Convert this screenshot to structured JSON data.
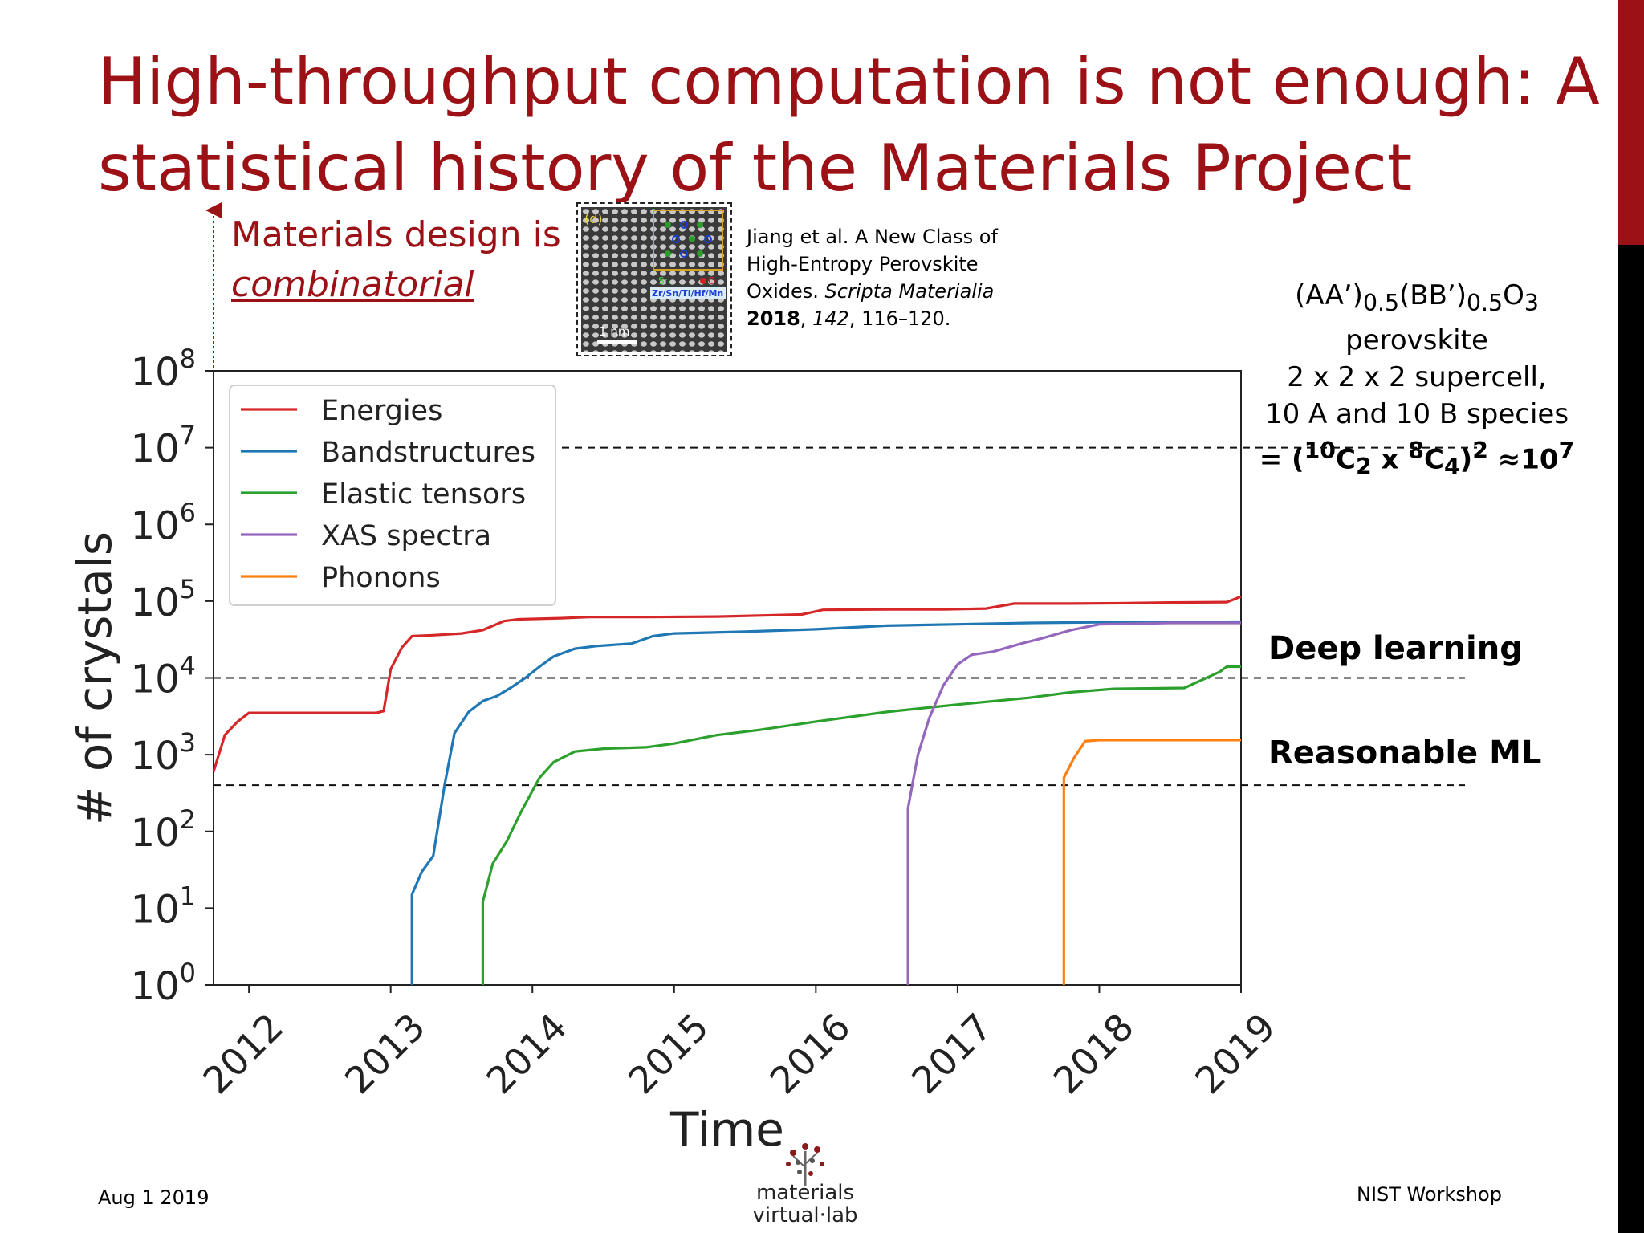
{
  "slide": {
    "title_lines": [
      "High-throughput computation is not enough: A",
      "statistical history of the Materials Project"
    ],
    "design_note": {
      "line1": "Materials design is",
      "line2": "combinatorial"
    },
    "citation": {
      "line1": "Jiang et al. A New Class of",
      "line2": "High-Entropy Perovskite",
      "line3_pre": "Oxides. ",
      "line3_journal": "Scripta Materialia",
      "line4_year": "2018",
      "line4_sep": ", ",
      "line4_volume": "142",
      "line4_pages": ", 116–120."
    },
    "micrograph": {
      "panel_label": "(d)",
      "elements_label": "Zr/Sn/Ti/Hf/Mn",
      "sr_label": "Sr",
      "o_label": "O",
      "scale_label": "1 nm"
    },
    "formula": {
      "line1_a": "(AA’)",
      "line1_sub1": "0.5",
      "line1_b": "(BB’)",
      "line1_sub2": "0.5",
      "line1_c": "O",
      "line1_sub3": "3",
      "line1_d": " perovskite",
      "line2": "2 x 2 x 2 supercell,",
      "line3": "10 A and 10 B species",
      "line4_a": "= (",
      "line4_sup1": "10",
      "line4_b": "C",
      "line4_sub1": "2",
      "line4_c": " x ",
      "line4_sup2": "8",
      "line4_d": "C",
      "line4_sub2": "4",
      "line4_e": ")",
      "line4_sup3": "2",
      "line4_f": " ≈10",
      "line4_sup4": "7"
    },
    "annotations": {
      "deep_learning": "Deep learning",
      "reasonable_ml": "Reasonable ML"
    },
    "footer": {
      "date": "Aug 1 2019",
      "venue": "NIST Workshop"
    },
    "logo": {
      "line1": "materials",
      "line2": "virtual·lab"
    },
    "colors": {
      "title": "#9b1116",
      "accent": "#9b1116"
    }
  },
  "chart_data": {
    "type": "line",
    "title": "",
    "xlabel": "Time",
    "ylabel": "# of crystals",
    "yscale": "log",
    "ylim_exponents": [
      0,
      8
    ],
    "xlim": [
      2011.75,
      2019.0
    ],
    "x_ticks": [
      2012,
      2013,
      2014,
      2015,
      2016,
      2017,
      2018,
      2019
    ],
    "y_tick_exponents": [
      0,
      1,
      2,
      3,
      4,
      5,
      6,
      7,
      8
    ],
    "y_tick_base": "10",
    "legend_position": "top-left",
    "reference_lines": [
      {
        "value": 10000000,
        "label": "≈10⁷"
      },
      {
        "value": 10000,
        "label": "Deep learning"
      },
      {
        "value": 400,
        "label": "Reasonable ML"
      }
    ],
    "series": [
      {
        "name": "Energies",
        "color": "#d62728",
        "points": [
          [
            2011.75,
            600
          ],
          [
            2011.83,
            1800
          ],
          [
            2011.92,
            2700
          ],
          [
            2012.0,
            3500
          ],
          [
            2012.5,
            3500
          ],
          [
            2012.9,
            3500
          ],
          [
            2012.95,
            3700
          ],
          [
            2013.0,
            13000
          ],
          [
            2013.08,
            25000
          ],
          [
            2013.15,
            35000
          ],
          [
            2013.3,
            36000
          ],
          [
            2013.5,
            38000
          ],
          [
            2013.65,
            42000
          ],
          [
            2013.8,
            55000
          ],
          [
            2013.9,
            58000
          ],
          [
            2014.2,
            60000
          ],
          [
            2014.4,
            62000
          ],
          [
            2014.8,
            62000
          ],
          [
            2015.3,
            63000
          ],
          [
            2015.6,
            65000
          ],
          [
            2015.9,
            67000
          ],
          [
            2016.05,
            77000
          ],
          [
            2016.5,
            78000
          ],
          [
            2016.9,
            78000
          ],
          [
            2017.2,
            80000
          ],
          [
            2017.4,
            93000
          ],
          [
            2017.8,
            93000
          ],
          [
            2018.2,
            94000
          ],
          [
            2018.5,
            96000
          ],
          [
            2018.9,
            97000
          ],
          [
            2019.0,
            115000
          ]
        ]
      },
      {
        "name": "Bandstructures",
        "color": "#1f77b4",
        "points": [
          [
            2013.15,
            0.3
          ],
          [
            2013.15,
            15
          ],
          [
            2013.22,
            30
          ],
          [
            2013.3,
            48
          ],
          [
            2013.38,
            400
          ],
          [
            2013.45,
            1900
          ],
          [
            2013.55,
            3600
          ],
          [
            2013.65,
            5000
          ],
          [
            2013.75,
            5800
          ],
          [
            2013.85,
            7500
          ],
          [
            2013.95,
            10000
          ],
          [
            2014.05,
            14000
          ],
          [
            2014.15,
            19000
          ],
          [
            2014.3,
            24000
          ],
          [
            2014.45,
            26000
          ],
          [
            2014.7,
            28000
          ],
          [
            2014.85,
            35000
          ],
          [
            2015.0,
            38000
          ],
          [
            2015.5,
            40000
          ],
          [
            2016.0,
            43000
          ],
          [
            2016.5,
            48000
          ],
          [
            2017.0,
            50000
          ],
          [
            2017.5,
            52000
          ],
          [
            2018.0,
            53000
          ],
          [
            2019.0,
            54000
          ]
        ]
      },
      {
        "name": "Elastic tensors",
        "color": "#2ca02c",
        "points": [
          [
            2013.65,
            0.3
          ],
          [
            2013.65,
            12
          ],
          [
            2013.72,
            38
          ],
          [
            2013.82,
            75
          ],
          [
            2013.92,
            180
          ],
          [
            2014.05,
            500
          ],
          [
            2014.15,
            800
          ],
          [
            2014.3,
            1100
          ],
          [
            2014.5,
            1200
          ],
          [
            2014.8,
            1250
          ],
          [
            2015.0,
            1400
          ],
          [
            2015.3,
            1800
          ],
          [
            2015.6,
            2100
          ],
          [
            2016.0,
            2700
          ],
          [
            2016.5,
            3600
          ],
          [
            2017.0,
            4500
          ],
          [
            2017.5,
            5500
          ],
          [
            2017.8,
            6500
          ],
          [
            2018.1,
            7200
          ],
          [
            2018.6,
            7400
          ],
          [
            2018.85,
            12000
          ],
          [
            2018.9,
            14000
          ],
          [
            2019.0,
            14000
          ]
        ]
      },
      {
        "name": "XAS spectra",
        "color": "#9467bd",
        "points": [
          [
            2016.65,
            0.3
          ],
          [
            2016.65,
            200
          ],
          [
            2016.72,
            1000
          ],
          [
            2016.8,
            3000
          ],
          [
            2016.9,
            8000
          ],
          [
            2017.0,
            15000
          ],
          [
            2017.1,
            20000
          ],
          [
            2017.25,
            22000
          ],
          [
            2017.45,
            28000
          ],
          [
            2017.6,
            33000
          ],
          [
            2017.8,
            42000
          ],
          [
            2018.0,
            50000
          ],
          [
            2018.5,
            52000
          ],
          [
            2019.0,
            52000
          ]
        ]
      },
      {
        "name": "Phonons",
        "color": "#ff7f0e",
        "points": [
          [
            2017.75,
            0.3
          ],
          [
            2017.75,
            500
          ],
          [
            2017.82,
            900
          ],
          [
            2017.9,
            1500
          ],
          [
            2018.0,
            1550
          ],
          [
            2018.5,
            1550
          ],
          [
            2019.0,
            1550
          ]
        ]
      }
    ]
  }
}
